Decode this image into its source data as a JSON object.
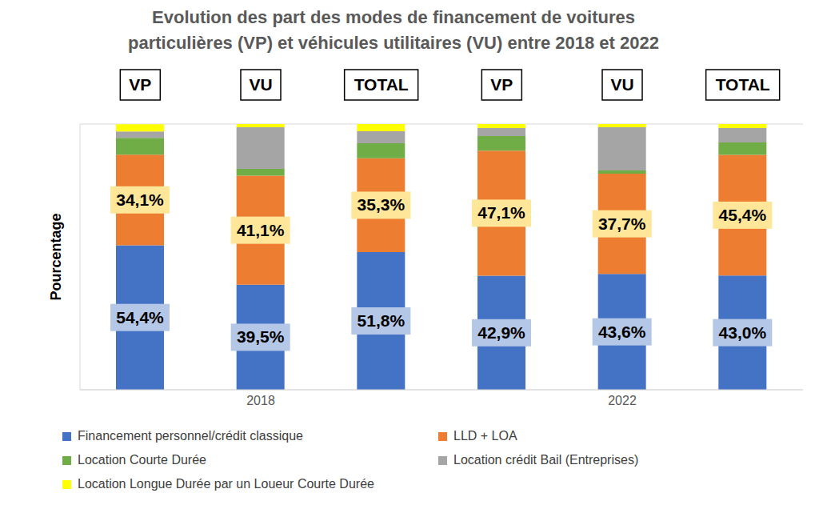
{
  "chart_data": {
    "type": "bar",
    "title": "Evolution des part des modes de financement de voitures particulières (VP) et véhicules utilitaires (VU) entre 2018 et 2022",
    "y_label": "Pourcentage",
    "categories": [
      "VP",
      "VU",
      "TOTAL",
      "VP",
      "VU",
      "TOTAL"
    ],
    "group_labels": [
      "2018",
      "2022"
    ],
    "stacked": true,
    "grid": true,
    "tick_labels": "x",
    "legend": "bottom",
    "ylim": [
      0,
      100
    ],
    "yticks": [
      0,
      20,
      40,
      60,
      80,
      100
    ],
    "series": [
      {
        "name": "Financement personnel/crédit classique",
        "color": "#4472c4",
        "values": [
          54.4,
          39.5,
          51.8,
          42.9,
          43.6,
          43.0
        ],
        "data_labels": true,
        "value_labels": [
          "54,4%",
          "39,5%",
          "51,8%",
          "42,9%",
          "43,6%",
          "43,0%"
        ]
      },
      {
        "name": "LLD + LOA",
        "color": "#ed7d31",
        "values": [
          34.1,
          41.1,
          35.3,
          47.1,
          37.7,
          45.4
        ],
        "data_labels": true,
        "value_labels": [
          "34,1%",
          "41,1%",
          "35,3%",
          "47,1%",
          "37,7%",
          "45,4%"
        ]
      },
      {
        "name": "Location Courte Durée",
        "color": "#70ad47",
        "values": [
          6.3,
          2.5,
          5.7,
          5.5,
          1.2,
          4.7
        ],
        "data_labels": false
      },
      {
        "name": "Location crédit Bail (Entreprises)",
        "color": "#a5a5a5",
        "values": [
          2.4,
          15.7,
          4.5,
          3.0,
          16.3,
          5.4
        ],
        "data_labels": false
      },
      {
        "name": "Location Longue Durée par un Loueur Courte Durée",
        "color": "#ffff00",
        "values": [
          2.7,
          1.2,
          2.7,
          1.5,
          1.2,
          1.5
        ],
        "data_labels": false
      }
    ]
  }
}
